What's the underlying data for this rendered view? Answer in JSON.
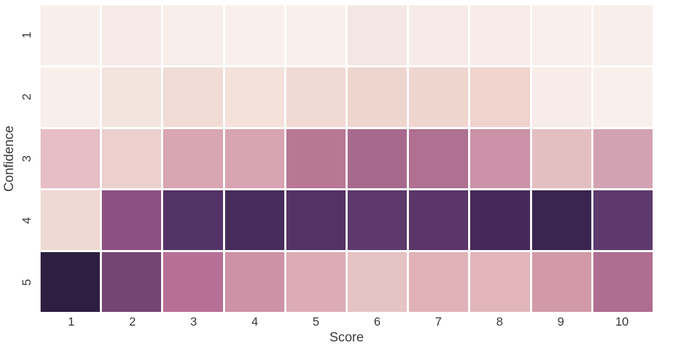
{
  "figure": {
    "background_color": "#ffffff",
    "label_color": "#3a3a3a",
    "gridline_color": "#ffffff"
  },
  "chart_data": {
    "type": "heatmap",
    "title": "",
    "xlabel": "Score",
    "ylabel": "Confidence",
    "x_categories": [
      "1",
      "2",
      "3",
      "4",
      "5",
      "6",
      "7",
      "8",
      "9",
      "10"
    ],
    "y_categories": [
      "1",
      "2",
      "3",
      "4",
      "5"
    ],
    "legend": "none",
    "colorbar": "none",
    "colormap_description": "cubehelix-style: light cream (low) through dusty pink and mauve to dark purple (high)",
    "values_normalized": [
      [
        0.02,
        0.04,
        0.03,
        0.02,
        0.02,
        0.06,
        0.04,
        0.04,
        0.02,
        0.03
      ],
      [
        0.02,
        0.08,
        0.11,
        0.09,
        0.12,
        0.14,
        0.14,
        0.14,
        0.05,
        0.02
      ],
      [
        0.26,
        0.17,
        0.35,
        0.36,
        0.53,
        0.6,
        0.56,
        0.4,
        0.25,
        0.37
      ],
      [
        0.13,
        0.64,
        0.83,
        0.89,
        0.84,
        0.79,
        0.81,
        0.9,
        0.94,
        0.79
      ],
      [
        0.98,
        0.71,
        0.55,
        0.39,
        0.3,
        0.21,
        0.27,
        0.26,
        0.34,
        0.58
      ]
    ],
    "cell_colors": [
      [
        "#f8efeb",
        "#f6eae6",
        "#f8eeea",
        "#f9f0ec",
        "#f9f0ec",
        "#f4e7e3",
        "#f6ebe7",
        "#f7ece8",
        "#f9efeb",
        "#f8eeea"
      ],
      [
        "#f9efea",
        "#f4e4de",
        "#f0dcd4",
        "#f3e1da",
        "#f0dad3",
        "#eed5cd",
        "#eed5ce",
        "#eed4cd",
        "#f8ece8",
        "#f9f0eb"
      ],
      [
        "#e6bec3",
        "#ecd0cd",
        "#d8a5b3",
        "#d8a3b2",
        "#b87795",
        "#a76a8e",
        "#b07092",
        "#cb91a6",
        "#e4bfc2",
        "#d2a2b2"
      ],
      [
        "#efd9d3",
        "#8d5181",
        "#543366",
        "#482d5c",
        "#543266",
        "#5d3a6b",
        "#5a3768",
        "#46295a",
        "#392550",
        "#5d3a6b"
      ],
      [
        "#2e1f41",
        "#744573",
        "#b77095",
        "#cd92a6",
        "#dcabb4",
        "#e6c3c5",
        "#e0b2b8",
        "#e2b5ba",
        "#d29aa8",
        "#af6d90"
      ]
    ]
  }
}
